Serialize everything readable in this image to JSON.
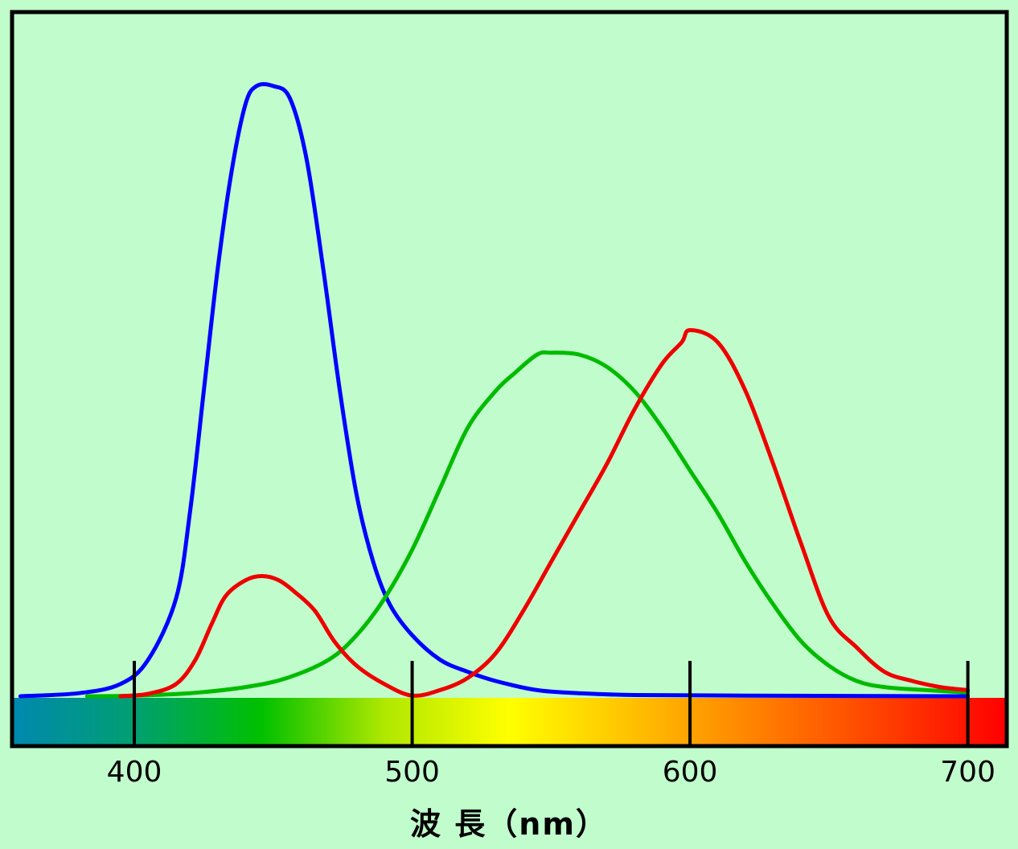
{
  "chart_data": {
    "type": "line",
    "xlabel": "波 長（nm）",
    "ylabel": "",
    "title": "",
    "xlim": [
      356,
      714
    ],
    "ylim": [
      0,
      1
    ],
    "x_ticks": [
      400,
      500,
      600,
      700
    ],
    "x_tick_labels": [
      "400",
      "500",
      "600",
      "700"
    ],
    "grid": false,
    "legend": "none",
    "spectrum_bar": true,
    "series": [
      {
        "color": "#0000ff",
        "points": [
          [
            359,
            0.0
          ],
          [
            380,
            0.005
          ],
          [
            395,
            0.02
          ],
          [
            405,
            0.06
          ],
          [
            415,
            0.16
          ],
          [
            420,
            0.3
          ],
          [
            425,
            0.5
          ],
          [
            430,
            0.7
          ],
          [
            435,
            0.86
          ],
          [
            440,
            0.97
          ],
          [
            444,
            1.0
          ],
          [
            450,
            1.0
          ],
          [
            456,
            0.98
          ],
          [
            462,
            0.88
          ],
          [
            468,
            0.7
          ],
          [
            474,
            0.5
          ],
          [
            480,
            0.33
          ],
          [
            486,
            0.22
          ],
          [
            492,
            0.15
          ],
          [
            500,
            0.1
          ],
          [
            510,
            0.06
          ],
          [
            520,
            0.04
          ],
          [
            530,
            0.025
          ],
          [
            545,
            0.01
          ],
          [
            560,
            0.005
          ],
          [
            580,
            0.002
          ],
          [
            620,
            0.001
          ],
          [
            700,
            0.0
          ]
        ]
      },
      {
        "color": "#00bb00",
        "points": [
          [
            383,
            0.0
          ],
          [
            400,
            0.001
          ],
          [
            420,
            0.005
          ],
          [
            440,
            0.015
          ],
          [
            455,
            0.03
          ],
          [
            470,
            0.06
          ],
          [
            480,
            0.1
          ],
          [
            490,
            0.16
          ],
          [
            500,
            0.24
          ],
          [
            510,
            0.34
          ],
          [
            520,
            0.44
          ],
          [
            530,
            0.5
          ],
          [
            537,
            0.53
          ],
          [
            545,
            0.56
          ],
          [
            550,
            0.563
          ],
          [
            560,
            0.56
          ],
          [
            570,
            0.54
          ],
          [
            580,
            0.5
          ],
          [
            590,
            0.44
          ],
          [
            600,
            0.37
          ],
          [
            610,
            0.3
          ],
          [
            620,
            0.22
          ],
          [
            630,
            0.15
          ],
          [
            640,
            0.09
          ],
          [
            650,
            0.05
          ],
          [
            660,
            0.025
          ],
          [
            670,
            0.015
          ],
          [
            685,
            0.01
          ],
          [
            700,
            0.006
          ]
        ]
      },
      {
        "color": "#ee0000",
        "points": [
          [
            395,
            0.0
          ],
          [
            405,
            0.004
          ],
          [
            415,
            0.02
          ],
          [
            422,
            0.06
          ],
          [
            428,
            0.12
          ],
          [
            433,
            0.165
          ],
          [
            440,
            0.19
          ],
          [
            446,
            0.197
          ],
          [
            452,
            0.19
          ],
          [
            458,
            0.17
          ],
          [
            465,
            0.14
          ],
          [
            472,
            0.09
          ],
          [
            480,
            0.05
          ],
          [
            490,
            0.02
          ],
          [
            500,
            0.001
          ],
          [
            510,
            0.01
          ],
          [
            520,
            0.03
          ],
          [
            530,
            0.07
          ],
          [
            540,
            0.14
          ],
          [
            550,
            0.22
          ],
          [
            560,
            0.3
          ],
          [
            570,
            0.38
          ],
          [
            580,
            0.47
          ],
          [
            590,
            0.545
          ],
          [
            597,
            0.58
          ],
          [
            600,
            0.6
          ],
          [
            610,
            0.58
          ],
          [
            620,
            0.5
          ],
          [
            630,
            0.38
          ],
          [
            640,
            0.25
          ],
          [
            650,
            0.13
          ],
          [
            660,
            0.08
          ],
          [
            670,
            0.04
          ],
          [
            680,
            0.025
          ],
          [
            690,
            0.015
          ],
          [
            700,
            0.01
          ]
        ]
      }
    ]
  },
  "colors": {
    "background": "#c0fccc",
    "frame": "#000000",
    "spectrum_stops": [
      "#0088b0",
      "#00a070",
      "#00c000",
      "#b0e800",
      "#ffff00",
      "#ffc000",
      "#ff8000",
      "#ff4000",
      "#ff0000"
    ]
  }
}
